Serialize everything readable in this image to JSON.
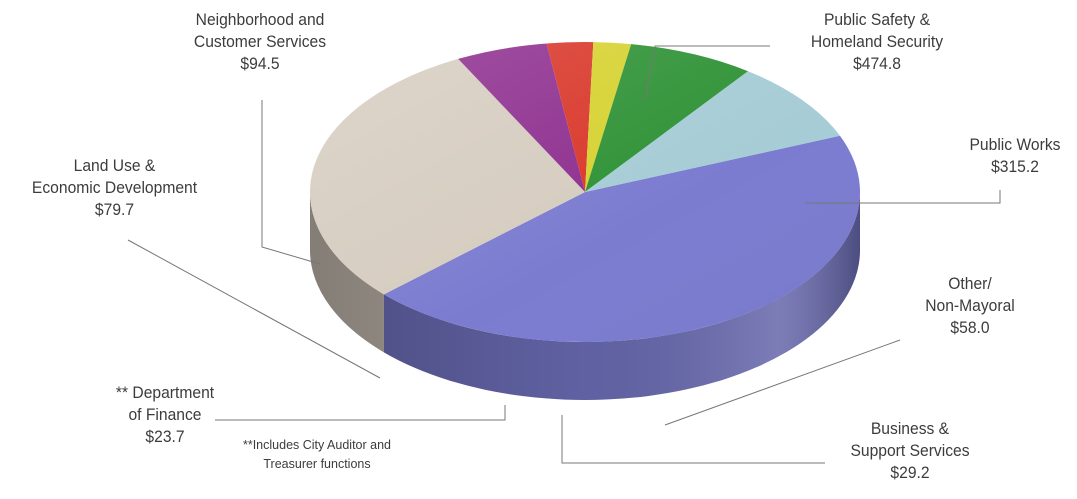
{
  "chart_data": {
    "type": "pie",
    "slices": [
      {
        "label_lines": [
          "Public Safety &",
          "Homeland Security"
        ],
        "value_label": "$474.8",
        "value": 474.8,
        "color": "#7b7cd0"
      },
      {
        "label_lines": [
          "Public Works"
        ],
        "value_label": "$315.2",
        "value": 315.2,
        "color": "#d6ccc0"
      },
      {
        "label_lines": [
          "Other/",
          "Non-Mayoral"
        ],
        "value_label": "$58.0",
        "value": 58.0,
        "color": "#8e2f8f"
      },
      {
        "label_lines": [
          "Business &",
          "Support Services"
        ],
        "value_label": "$29.2",
        "value": 29.2,
        "color": "#d9372a"
      },
      {
        "label_lines": [
          "** Department",
          "of Finance"
        ],
        "value_label": "$23.7",
        "value": 23.7,
        "color": "#d6d230"
      },
      {
        "label_lines": [
          "Land Use &",
          "Economic Development"
        ],
        "value_label": "$79.7",
        "value": 79.7,
        "color": "#2f9236"
      },
      {
        "label_lines": [
          "Neighborhood and",
          "Customer Services"
        ],
        "value_label": "$94.5",
        "value": 94.5,
        "color": "#a6ccd6"
      }
    ],
    "footnote_lines": [
      "**Includes City Auditor and",
      "Treasurer functions"
    ]
  }
}
